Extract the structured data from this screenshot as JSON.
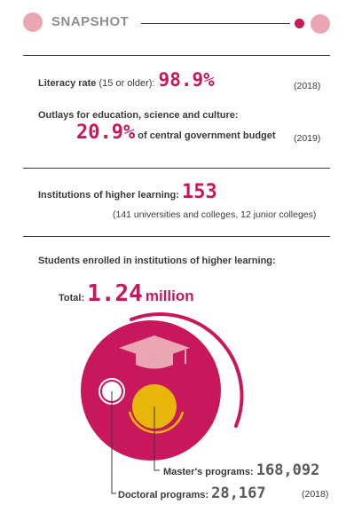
{
  "header": {
    "title": "SNAPSHOT"
  },
  "literacy": {
    "label": "Literacy rate",
    "qualifier": "(15 or older):",
    "value": "98.9%",
    "year": "(2018)"
  },
  "outlays": {
    "label": "Outlays for education, science and culture:",
    "value": "20.9%",
    "suffix": "of central government budget",
    "year": "(2019)"
  },
  "institutions": {
    "label": "Institutions of higher learning:",
    "value": "153",
    "detail": "(141 universities and colleges, 12 junior colleges)"
  },
  "students": {
    "label": "Students enrolled in institutions of higher learning:",
    "total_label": "Total:",
    "total_value": "1.24",
    "total_unit": "million",
    "masters_label": "Master's programs:",
    "masters_value": "168,092",
    "doctoral_label": "Doctoral programs:",
    "doctoral_value": "28,167",
    "year": "(2018)"
  },
  "colors": {
    "accent": "#c8175c",
    "accent_light": "#eba6b3",
    "gold": "#e6b70a",
    "text": "#3a3a3a"
  },
  "icons": [
    "graduation-cap-icon"
  ]
}
